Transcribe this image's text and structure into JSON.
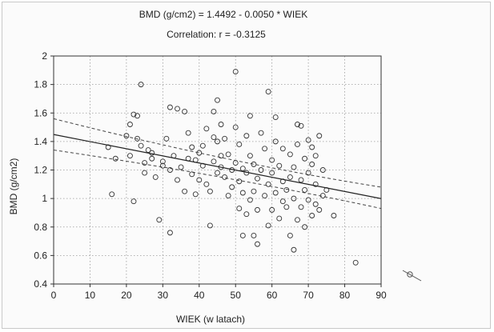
{
  "chart_data": {
    "type": "scatter",
    "title": "BMD (g/cm2) = 1.4492 - 0.0050 * WIEK",
    "subtitle": "Correlation: r = -0.3125",
    "xlabel": "WIEK (w latach)",
    "ylabel": "BMD (g/cm2)",
    "xlim": [
      0,
      90
    ],
    "ylim": [
      0.4,
      2.0
    ],
    "x_ticks": [
      "0",
      "10",
      "20",
      "30",
      "40",
      "50",
      "60",
      "70",
      "80",
      "90"
    ],
    "y_ticks": [
      "0.4",
      "0.6",
      "0.8",
      "1",
      "1.2",
      "1.4",
      "1.6",
      "1.8",
      "2"
    ],
    "grid": true,
    "regression": {
      "intercept": 1.4492,
      "slope": -0.005
    },
    "confidence_band": {
      "upper": [
        [
          0,
          1.56
        ],
        [
          48,
          1.25
        ],
        [
          90,
          1.08
        ]
      ],
      "lower": [
        [
          0,
          1.34
        ],
        [
          48,
          1.16
        ],
        [
          90,
          0.93
        ]
      ]
    },
    "points": [
      [
        15,
        1.36
      ],
      [
        16,
        1.03
      ],
      [
        17,
        1.28
      ],
      [
        20,
        1.44
      ],
      [
        21,
        1.52
      ],
      [
        21,
        1.3
      ],
      [
        22,
        1.59
      ],
      [
        22,
        0.98
      ],
      [
        23,
        1.58
      ],
      [
        23,
        1.42
      ],
      [
        24,
        1.8
      ],
      [
        24,
        1.37
      ],
      [
        25,
        1.18
      ],
      [
        25,
        1.25
      ],
      [
        26,
        1.34
      ],
      [
        27,
        1.28
      ],
      [
        27,
        1.32
      ],
      [
        28,
        1.15
      ],
      [
        29,
        0.85
      ],
      [
        30,
        1.23
      ],
      [
        30,
        1.26
      ],
      [
        31,
        1.42
      ],
      [
        32,
        1.2
      ],
      [
        32,
        1.64
      ],
      [
        32,
        0.76
      ],
      [
        33,
        1.3
      ],
      [
        34,
        1.63
      ],
      [
        34,
        1.13
      ],
      [
        35,
        1.22
      ],
      [
        36,
        1.61
      ],
      [
        36,
        1.05
      ],
      [
        37,
        1.28
      ],
      [
        37,
        1.46
      ],
      [
        38,
        1.17
      ],
      [
        38,
        1.36
      ],
      [
        39,
        1.03
      ],
      [
        39,
        1.27
      ],
      [
        40,
        1.13
      ],
      [
        40,
        1.32
      ],
      [
        41,
        1.37
      ],
      [
        41,
        1.23
      ],
      [
        42,
        1.49
      ],
      [
        42,
        1.1
      ],
      [
        43,
        0.81
      ],
      [
        43,
        1.05
      ],
      [
        44,
        1.43
      ],
      [
        44,
        1.26
      ],
      [
        44,
        1.61
      ],
      [
        45,
        1.69
      ],
      [
        45,
        1.4
      ],
      [
        45,
        1.18
      ],
      [
        46,
        1.52
      ],
      [
        46,
        1.22
      ],
      [
        46,
        1.3
      ],
      [
        47,
        1.15
      ],
      [
        47,
        1.42
      ],
      [
        48,
        1.02
      ],
      [
        48,
        1.31
      ],
      [
        49,
        1.2
      ],
      [
        49,
        1.08
      ],
      [
        50,
        1.89
      ],
      [
        50,
        1.5
      ],
      [
        50,
        1.25
      ],
      [
        51,
        0.93
      ],
      [
        51,
        1.12
      ],
      [
        51,
        1.38
      ],
      [
        52,
        0.74
      ],
      [
        52,
        1.04
      ],
      [
        52,
        1.21
      ],
      [
        53,
        1.44
      ],
      [
        53,
        0.89
      ],
      [
        53,
        1.18
      ],
      [
        54,
        1.3
      ],
      [
        54,
        1.58
      ],
      [
        54,
        0.99
      ],
      [
        55,
        1.05
      ],
      [
        55,
        0.74
      ],
      [
        55,
        1.24
      ],
      [
        56,
        0.68
      ],
      [
        56,
        1.14
      ],
      [
        56,
        0.92
      ],
      [
        57,
        1.2
      ],
      [
        57,
        1.46
      ],
      [
        58,
        1.02
      ],
      [
        58,
        1.35
      ],
      [
        59,
        1.75
      ],
      [
        59,
        0.81
      ],
      [
        59,
        1.1
      ],
      [
        60,
        1.27
      ],
      [
        60,
        0.92
      ],
      [
        60,
        1.18
      ],
      [
        61,
        1.4
      ],
      [
        61,
        1.04
      ],
      [
        61,
        1.57
      ],
      [
        62,
        1.23
      ],
      [
        62,
        0.86
      ],
      [
        63,
        1.12
      ],
      [
        63,
        0.98
      ],
      [
        63,
        1.35
      ],
      [
        64,
        1.06
      ],
      [
        64,
        0.94
      ],
      [
        65,
        0.74
      ],
      [
        65,
        1.31
      ],
      [
        65,
        1.15
      ],
      [
        66,
        0.64
      ],
      [
        66,
        1.0
      ],
      [
        66,
        1.22
      ],
      [
        67,
        1.52
      ],
      [
        67,
        0.85
      ],
      [
        67,
        1.38
      ],
      [
        68,
        0.94
      ],
      [
        68,
        1.13
      ],
      [
        68,
        1.51
      ],
      [
        69,
        0.8
      ],
      [
        69,
        1.06
      ],
      [
        69,
        1.28
      ],
      [
        70,
        1.41
      ],
      [
        70,
        0.99
      ],
      [
        70,
        1.18
      ],
      [
        71,
        1.36
      ],
      [
        71,
        0.88
      ],
      [
        71,
        1.24
      ],
      [
        72,
        1.1
      ],
      [
        72,
        0.96
      ],
      [
        72,
        1.3
      ],
      [
        73,
        1.44
      ],
      [
        73,
        0.92
      ],
      [
        74,
        1.02
      ],
      [
        74,
        1.2
      ],
      [
        75,
        1.06
      ],
      [
        77,
        0.88
      ],
      [
        83,
        0.55
      ]
    ]
  }
}
